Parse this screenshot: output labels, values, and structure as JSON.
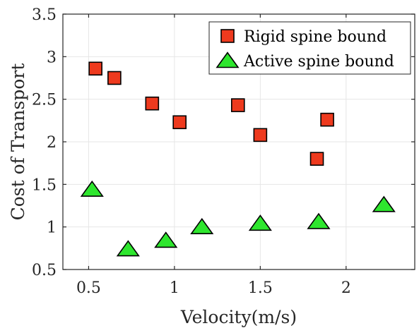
{
  "chart_data": {
    "type": "scatter",
    "xlabel": "Velocity(m/s)",
    "ylabel": "Cost of Transport",
    "xlim": [
      0.35,
      2.4
    ],
    "ylim": [
      0.5,
      3.5
    ],
    "xticks": [
      0.5,
      1,
      1.5,
      2
    ],
    "xtick_labels": [
      "0.5",
      "1",
      "1.5",
      "2"
    ],
    "yticks": [
      0.5,
      1,
      1.5,
      2,
      2.5,
      3,
      3.5
    ],
    "ytick_labels": [
      "0.5",
      "1",
      "1.5",
      "2",
      "2.5",
      "3",
      "3.5"
    ],
    "grid": true,
    "legend_position": "top-right",
    "series": [
      {
        "name": "Rigid spine bound",
        "marker": "square",
        "color": "#ee3a1e",
        "x": [
          0.54,
          0.65,
          0.87,
          1.03,
          1.37,
          1.5,
          1.83,
          1.89
        ],
        "y": [
          2.86,
          2.75,
          2.45,
          2.23,
          2.43,
          2.08,
          1.8,
          2.26
        ]
      },
      {
        "name": "Active spine bound",
        "marker": "triangle",
        "color": "#2ee62e",
        "x": [
          0.52,
          0.73,
          0.95,
          1.16,
          1.5,
          1.84,
          2.22
        ],
        "y": [
          1.44,
          0.74,
          0.84,
          1.0,
          1.04,
          1.06,
          1.26
        ]
      }
    ]
  }
}
